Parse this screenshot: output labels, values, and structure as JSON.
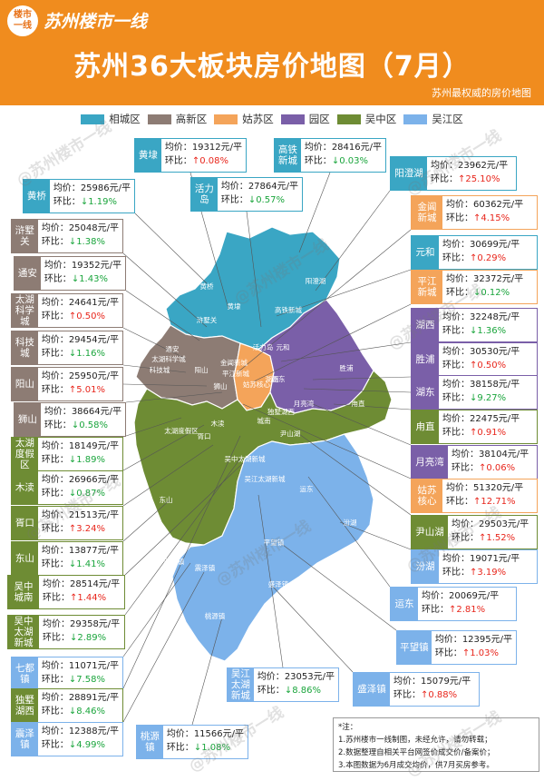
{
  "header": {
    "logo_badge": "楼市\n一线",
    "brand": "苏州楼市一线",
    "title": "苏州36大板块房价地图（7月）",
    "subtitle": "苏州最权威的房价地图"
  },
  "legend": [
    {
      "label": "相城区",
      "color": "#3aa6c4"
    },
    {
      "label": "高新区",
      "color": "#8d7c74"
    },
    {
      "label": "姑苏区",
      "color": "#f4a45a"
    },
    {
      "label": "园区",
      "color": "#7a5fa8"
    },
    {
      "label": "吴中区",
      "color": "#6e8c34"
    },
    {
      "label": "吴江区",
      "color": "#7cb2ea"
    }
  ],
  "labels": {
    "price": "均价：",
    "change": "环比："
  },
  "blocks": [
    {
      "name": "黄埭",
      "price": "19312元/平",
      "change": "↑0.08%",
      "dir": "up",
      "color": "#3aa6c4"
    },
    {
      "name": "高铁\n新城",
      "price": "28416元/平",
      "change": "↓0.03%",
      "dir": "down",
      "color": "#3aa6c4"
    },
    {
      "name": "活力岛",
      "price": "27864元/平",
      "change": "↓0.57%",
      "dir": "down",
      "color": "#3aa6c4"
    },
    {
      "name": "阳澄湖",
      "price": "23962元/平",
      "change": "↑25.10%",
      "dir": "up",
      "color": "#3aa6c4"
    },
    {
      "name": "黄桥",
      "price": "25986元/平",
      "change": "↓1.19%",
      "dir": "down",
      "color": "#3aa6c4"
    },
    {
      "name": "金阊\n新城",
      "price": "60362元/平",
      "change": "↑4.15%",
      "dir": "up",
      "color": "#f4a45a"
    },
    {
      "name": "浒墅关",
      "price": "25048元/平",
      "change": "↓1.38%",
      "dir": "down",
      "color": "#8d7c74"
    },
    {
      "name": "元和",
      "price": "30699元/平",
      "change": "↑0.29%",
      "dir": "up",
      "color": "#3aa6c4"
    },
    {
      "name": "通安",
      "price": "19352元/平",
      "change": "↓1.43%",
      "dir": "down",
      "color": "#8d7c74"
    },
    {
      "name": "平江\n新城",
      "price": "32372元/平",
      "change": "↓0.12%",
      "dir": "down",
      "color": "#f4a45a"
    },
    {
      "name": "太湖\n科学城",
      "price": "24641元/平",
      "change": "↑0.50%",
      "dir": "up",
      "color": "#8d7c74"
    },
    {
      "name": "湖西",
      "price": "32248元/平",
      "change": "↓1.36%",
      "dir": "down",
      "color": "#7a5fa8"
    },
    {
      "name": "科技城",
      "price": "29454元/平",
      "change": "↓1.16%",
      "dir": "down",
      "color": "#8d7c74"
    },
    {
      "name": "胜浦",
      "price": "30530元/平",
      "change": "↑0.50%",
      "dir": "up",
      "color": "#7a5fa8"
    },
    {
      "name": "阳山",
      "price": "25950元/平",
      "change": "↑5.01%",
      "dir": "up",
      "color": "#8d7c74"
    },
    {
      "name": "湖东",
      "price": "38158元/平",
      "change": "↓9.27%",
      "dir": "down",
      "color": "#7a5fa8"
    },
    {
      "name": "狮山",
      "price": "38664元/平",
      "change": "↓0.58%",
      "dir": "down",
      "color": "#8d7c74"
    },
    {
      "name": "甪直",
      "price": "22475元/平",
      "change": "↑0.91%",
      "dir": "up",
      "color": "#6e8c34"
    },
    {
      "name": "太湖\n度假区",
      "price": "18149元/平",
      "change": "↓1.89%",
      "dir": "down",
      "color": "#6e8c34"
    },
    {
      "name": "月亮湾",
      "price": "38104元/平",
      "change": "↑0.06%",
      "dir": "up",
      "color": "#7a5fa8"
    },
    {
      "name": "木渎",
      "price": "26966元/平",
      "change": "↓0.87%",
      "dir": "down",
      "color": "#6e8c34"
    },
    {
      "name": "姑苏\n核心",
      "price": "51320元/平",
      "change": "↑12.71%",
      "dir": "up",
      "color": "#f4a45a"
    },
    {
      "name": "胥口",
      "price": "21513元/平",
      "change": "↑3.24%",
      "dir": "up",
      "color": "#6e8c34"
    },
    {
      "name": "尹山湖",
      "price": "29503元/平",
      "change": "↑1.52%",
      "dir": "up",
      "color": "#6e8c34"
    },
    {
      "name": "东山",
      "price": "13877元/平",
      "change": "↓1.41%",
      "dir": "down",
      "color": "#6e8c34"
    },
    {
      "name": "汾湖",
      "price": "19071元/平",
      "change": "↑3.19%",
      "dir": "up",
      "color": "#7cb2ea"
    },
    {
      "name": "吴中\n城南",
      "price": "28514元/平",
      "change": "↑1.44%",
      "dir": "up",
      "color": "#6e8c34"
    },
    {
      "name": "运东",
      "price": "20069元/平",
      "change": "↑2.81%",
      "dir": "up",
      "color": "#7cb2ea"
    },
    {
      "name": "吴中\n太湖\n新城",
      "price": "29358元/平",
      "change": "↓2.89%",
      "dir": "down",
      "color": "#6e8c34"
    },
    {
      "name": "平望镇",
      "price": "12395元/平",
      "change": "↑1.03%",
      "dir": "up",
      "color": "#7cb2ea"
    },
    {
      "name": "七都镇",
      "price": "11071元/平",
      "change": "↓7.58%",
      "dir": "down",
      "color": "#7cb2ea"
    },
    {
      "name": "吴江\n太湖\n新城",
      "price": "23053元/平",
      "change": "↓8.86%",
      "dir": "down",
      "color": "#7cb2ea"
    },
    {
      "name": "盛泽镇",
      "price": "15079元/平",
      "change": "↑0.88%",
      "dir": "up",
      "color": "#7cb2ea"
    },
    {
      "name": "独墅\n湖西",
      "price": "28891元/平",
      "change": "↓8.46%",
      "dir": "down",
      "color": "#6e8c34"
    },
    {
      "name": "震泽镇",
      "price": "12388元/平",
      "change": "↓4.99%",
      "dir": "down",
      "color": "#7cb2ea"
    },
    {
      "name": "桃源镇",
      "price": "11566元/平",
      "change": "↓1.08%",
      "dir": "down",
      "color": "#7cb2ea"
    }
  ],
  "map_labels": [
    "黄埭",
    "阳澄湖",
    "高铁新城",
    "浒墅关",
    "黄桥",
    "活力岛",
    "元和",
    "通安",
    "太湖科学城",
    "科技城",
    "阳山",
    "金阊新城",
    "平江新城",
    "姑苏核心",
    "湖西",
    "湖东",
    "胜浦",
    "狮山",
    "月亮湾",
    "甪直",
    "独墅湖西",
    "城南",
    "尹山湖",
    "木渎",
    "太湖度假区",
    "胥口",
    "吴中太湖新城",
    "吴江太湖新城",
    "运东",
    "东山",
    "平望镇",
    "汾湖",
    "七都镇",
    "震泽镇",
    "盛泽镇",
    "桃源镇"
  ],
  "note": {
    "title": "*注：",
    "lines": [
      "1.苏州楼市一线制图，未经允许，请勿转载；",
      "2.数据整理自相关平台网签价成交价/备案价；",
      "3.本图数据为6月成交均价，供7月买房参考。"
    ]
  },
  "watermark": "@苏州楼市一线"
}
